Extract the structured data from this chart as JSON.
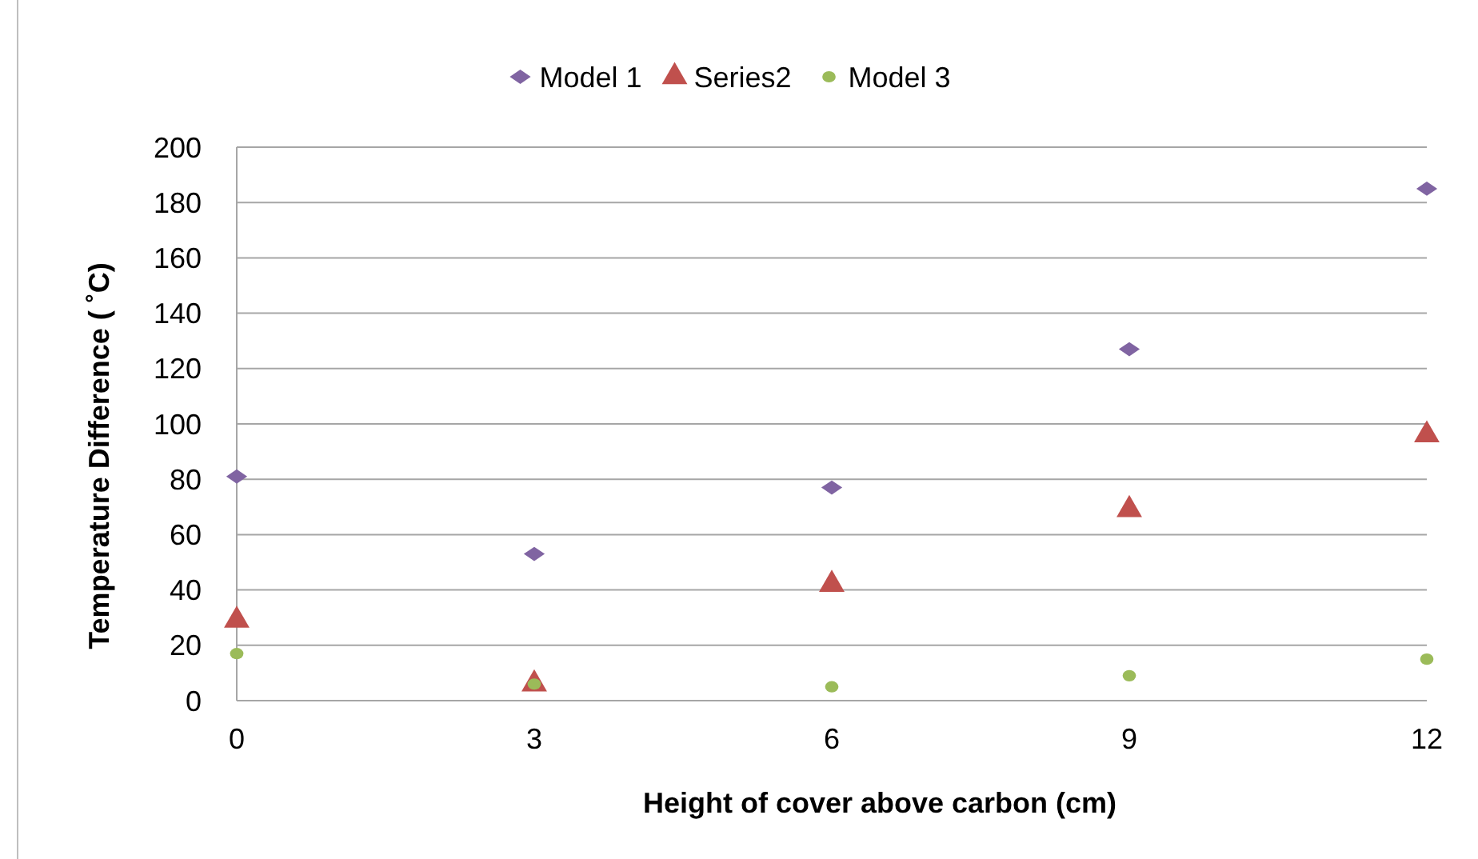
{
  "chart_data": {
    "type": "scatter",
    "xlabel": "Height of cover above carbon (cm)",
    "ylabel": "Temperature Difference ( ˚C)",
    "x": [
      0,
      3,
      6,
      9,
      12
    ],
    "series": [
      {
        "name": "Model 1",
        "color": "#8064a2",
        "marker": "diamond",
        "values": [
          81,
          53,
          77,
          127,
          185
        ]
      },
      {
        "name": "Series2",
        "color": "#c0504d",
        "marker": "triangle",
        "values": [
          29,
          6,
          42,
          69,
          96
        ]
      },
      {
        "name": "Model 3",
        "color": "#9bbb59",
        "marker": "circle",
        "values": [
          17,
          6,
          5,
          9,
          15
        ]
      }
    ],
    "xlim": [
      0,
      12
    ],
    "xticks": [
      0,
      3,
      6,
      9,
      12
    ],
    "ylim": [
      0,
      200
    ],
    "yticks": [
      0,
      20,
      40,
      60,
      80,
      100,
      120,
      140,
      160,
      180,
      200
    ],
    "grid": "y",
    "legend": "top"
  }
}
